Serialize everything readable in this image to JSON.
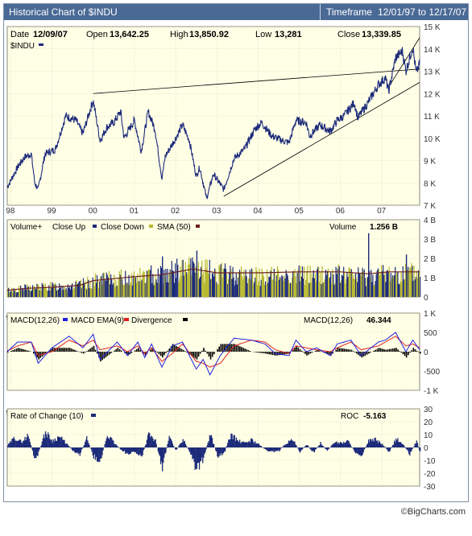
{
  "header": {
    "title": "Historical Chart of $INDU",
    "timeframe_label": "Timeframe",
    "timeframe_value": "12/01/97 to 12/17/07"
  },
  "quote": {
    "date_label": "Date",
    "date": "12/09/07",
    "open_label": "Open",
    "open": "13,642.25",
    "high_label": "High",
    "high": "13,850.92",
    "low_label": "Low",
    "low": "13,281",
    "close_label": "Close",
    "close": "13,339.85"
  },
  "credit": "©BigCharts.com",
  "colors": {
    "panel_bg": "#ffffe6",
    "grid": "#c9c9b0",
    "price_line": "#1c2a7a",
    "volume_up": "#1c2a7a",
    "volume_down": "#b8b830",
    "sma": "#6b1f1f",
    "macd": "#2020e0",
    "macd_ema": "#e02020",
    "divergence": "#000000",
    "roc": "#1c2a7a"
  },
  "chart_data": [
    {
      "type": "line",
      "panel": "price",
      "title": "",
      "series": [
        {
          "name": "$INDU",
          "x": [
            "1997-12",
            "1998-03",
            "1998-05",
            "1998-07",
            "1998-08",
            "1998-09",
            "1998-11",
            "1999-02",
            "1999-05",
            "1999-08",
            "1999-10",
            "2000-01",
            "2000-03",
            "2000-05",
            "2000-07",
            "2000-09",
            "2000-10",
            "2001-01",
            "2001-03",
            "2001-05",
            "2001-07",
            "2001-09",
            "2001-10",
            "2002-01",
            "2002-03",
            "2002-05",
            "2002-07",
            "2002-08",
            "2002-10",
            "2002-12",
            "2003-03",
            "2003-06",
            "2003-09",
            "2003-12",
            "2004-02",
            "2004-05",
            "2004-08",
            "2004-10",
            "2004-12",
            "2005-03",
            "2005-04",
            "2005-07",
            "2005-10",
            "2005-12",
            "2006-02",
            "2006-05",
            "2006-06",
            "2006-09",
            "2006-12",
            "2007-02",
            "2007-03",
            "2007-05",
            "2007-07",
            "2007-08",
            "2007-10",
            "2007-11",
            "2007-12"
          ],
          "values": [
            7800,
            8700,
            9150,
            9300,
            8000,
            7700,
            9300,
            9500,
            11000,
            10800,
            10200,
            11700,
            9900,
            10500,
            10700,
            11200,
            10000,
            10800,
            9400,
            11200,
            10400,
            8200,
            9200,
            10000,
            10600,
            9900,
            8300,
            8700,
            7300,
            8400,
            7700,
            9100,
            9500,
            10400,
            10700,
            10100,
            9900,
            9800,
            10800,
            10700,
            10100,
            10600,
            10300,
            10800,
            11000,
            11600,
            10900,
            11600,
            12400,
            12700,
            12100,
            13600,
            13900,
            13000,
            14100,
            12900,
            13340
          ]
        }
      ],
      "trendlines": [
        {
          "from": [
            "2000-01",
            12000
          ],
          "to": [
            "2007-12",
            13100
          ]
        },
        {
          "from": [
            "2003-03",
            7400
          ],
          "to": [
            "2007-12",
            12500
          ]
        },
        {
          "from": [
            "2007-03",
            12300
          ],
          "to": [
            "2007-12",
            14500
          ]
        }
      ],
      "ylim": [
        7000,
        15000
      ],
      "yticks": [
        7000,
        8000,
        9000,
        10000,
        11000,
        12000,
        13000,
        14000,
        15000
      ],
      "ytick_labels": [
        "7 K",
        "8 K",
        "9 K",
        "10 K",
        "11 K",
        "12 K",
        "13 K",
        "14 K",
        "15 K"
      ],
      "xlim": [
        "1997-12",
        "2007-12"
      ],
      "xticks": [
        "1998-01",
        "1999-01",
        "2000-01",
        "2001-01",
        "2002-01",
        "2003-01",
        "2004-01",
        "2005-01",
        "2006-01",
        "2007-01"
      ],
      "xtick_labels": [
        "98",
        "99",
        "00",
        "01",
        "02",
        "03",
        "04",
        "05",
        "06",
        "07"
      ],
      "grid": true,
      "legend": "top-left"
    },
    {
      "type": "bar",
      "panel": "volume",
      "title": "Volume+",
      "legend_items": [
        "Close Up",
        "Close Down",
        "SMA (50)"
      ],
      "value_label": "Volume",
      "value_text": "1.256 B",
      "ylim": [
        0,
        4
      ],
      "yticks": [
        0,
        1,
        2,
        3,
        4
      ],
      "ytick_labels": [
        "0",
        "1 B",
        "2 B",
        "3 B",
        "4 B"
      ],
      "unit": "billion shares",
      "series": [
        {
          "name": "SMA (50)",
          "x": [
            "1997-12",
            "1998-06",
            "1999-01",
            "1999-09",
            "2000-01",
            "2000-07",
            "2001-01",
            "2001-09",
            "2002-06",
            "2003-01",
            "2004-01",
            "2005-01",
            "2006-01",
            "2006-09",
            "2007-03",
            "2007-12"
          ],
          "values": [
            0.35,
            0.45,
            0.5,
            0.6,
            0.85,
            0.95,
            1.05,
            1.15,
            1.45,
            1.25,
            1.25,
            1.3,
            1.3,
            1.2,
            1.3,
            1.3
          ]
        },
        {
          "name": "Volume envelope",
          "x": [
            "1997-12",
            "1998-06",
            "1999-01",
            "1999-09",
            "2000-01",
            "2000-07",
            "2001-01",
            "2001-09",
            "2002-06",
            "2003-01",
            "2004-01",
            "2005-01",
            "2006-01",
            "2006-09",
            "2007-03",
            "2007-12"
          ],
          "values": [
            0.5,
            0.7,
            0.8,
            0.9,
            1.2,
            1.4,
            1.5,
            1.8,
            2.2,
            1.8,
            1.6,
            1.7,
            1.7,
            1.6,
            1.8,
            1.8
          ]
        }
      ],
      "spikes": [
        {
          "x": "2001-09",
          "value": 2.1
        },
        {
          "x": "2002-07",
          "value": 2.4
        },
        {
          "x": "2006-09",
          "value": 3.3
        },
        {
          "x": "2007-08",
          "value": 2.2
        }
      ],
      "xtick_labels": [
        "98",
        "99",
        "00",
        "01",
        "02",
        "03",
        "04",
        "05",
        "06",
        "07"
      ],
      "grid": true
    },
    {
      "type": "line",
      "panel": "macd",
      "title": "MACD(12,26)",
      "legend_items": [
        "MACD EMA(9)",
        "Divergence"
      ],
      "value_label": "MACD(12,26)",
      "value_text": "46.344",
      "ylim": [
        -1000,
        1000
      ],
      "yticks": [
        -1000,
        -500,
        0,
        500,
        1000
      ],
      "ytick_labels": [
        "-1 K",
        "-500",
        "0",
        "500",
        "1 K"
      ],
      "series": [
        {
          "name": "MACD(12,26)",
          "x": [
            "1997-12",
            "1998-03",
            "1998-07",
            "1998-09",
            "1999-01",
            "1999-06",
            "1999-10",
            "2000-01",
            "2000-03",
            "2000-08",
            "2000-11",
            "2001-02",
            "2001-04",
            "2001-06",
            "2001-09",
            "2001-12",
            "2002-03",
            "2002-07",
            "2002-09",
            "2002-11",
            "2003-02",
            "2003-06",
            "2003-11",
            "2004-03",
            "2004-06",
            "2004-10",
            "2004-12",
            "2005-03",
            "2005-06",
            "2005-10",
            "2005-12",
            "2006-04",
            "2006-07",
            "2006-12",
            "2007-02",
            "2007-05",
            "2007-08",
            "2007-10",
            "2007-12"
          ],
          "values": [
            0,
            250,
            250,
            -300,
            100,
            400,
            100,
            450,
            -200,
            250,
            -100,
            250,
            -150,
            200,
            -400,
            150,
            250,
            -450,
            -200,
            -600,
            -100,
            350,
            300,
            200,
            -50,
            -100,
            300,
            0,
            100,
            -100,
            200,
            300,
            -100,
            250,
            300,
            500,
            0,
            300,
            50
          ]
        },
        {
          "name": "MACD EMA(9)",
          "x": [
            "1997-12",
            "1998-03",
            "1998-07",
            "1998-09",
            "1999-01",
            "1999-06",
            "1999-10",
            "2000-01",
            "2000-03",
            "2000-08",
            "2000-11",
            "2001-02",
            "2001-04",
            "2001-06",
            "2001-09",
            "2001-12",
            "2002-03",
            "2002-07",
            "2002-09",
            "2002-11",
            "2003-02",
            "2003-06",
            "2003-11",
            "2004-03",
            "2004-06",
            "2004-10",
            "2004-12",
            "2005-03",
            "2005-06",
            "2005-10",
            "2005-12",
            "2006-04",
            "2006-07",
            "2006-12",
            "2007-02",
            "2007-05",
            "2007-08",
            "2007-10",
            "2007-12"
          ],
          "values": [
            20,
            150,
            250,
            -100,
            0,
            300,
            150,
            300,
            50,
            150,
            0,
            150,
            -50,
            100,
            -250,
            -50,
            200,
            -250,
            -300,
            -400,
            -300,
            150,
            300,
            250,
            50,
            -50,
            150,
            100,
            50,
            0,
            100,
            250,
            50,
            150,
            250,
            400,
            150,
            200,
            100
          ]
        }
      ],
      "xtick_labels": [
        "98",
        "99",
        "00",
        "01",
        "02",
        "03",
        "04",
        "05",
        "06",
        "07"
      ],
      "grid": true
    },
    {
      "type": "bar",
      "panel": "roc",
      "title": "Rate of Change (10)",
      "value_label": "ROC",
      "value_text": "-5.163",
      "ylim": [
        -30,
        30
      ],
      "yticks": [
        -30,
        -20,
        -10,
        0,
        10,
        20,
        30
      ],
      "ytick_labels": [
        "-30",
        "-20",
        "-10",
        "0",
        "10",
        "20",
        "30"
      ],
      "series": [
        {
          "name": "Rate of Change (10)",
          "x": [
            "1997-12",
            "1998-02",
            "1998-04",
            "1998-06",
            "1998-08",
            "1998-09",
            "1998-11",
            "1999-01",
            "1999-03",
            "1999-05",
            "1999-07",
            "1999-09",
            "1999-11",
            "2000-01",
            "2000-03",
            "2000-05",
            "2000-07",
            "2000-09",
            "2000-11",
            "2001-01",
            "2001-03",
            "2001-05",
            "2001-07",
            "2001-09",
            "2001-11",
            "2002-01",
            "2002-03",
            "2002-05",
            "2002-07",
            "2002-09",
            "2002-11",
            "2003-01",
            "2003-03",
            "2003-05",
            "2003-07",
            "2003-09",
            "2003-11",
            "2004-01",
            "2004-03",
            "2004-05",
            "2004-07",
            "2004-09",
            "2004-11",
            "2005-01",
            "2005-03",
            "2005-05",
            "2005-07",
            "2005-09",
            "2005-11",
            "2006-01",
            "2006-03",
            "2006-05",
            "2006-07",
            "2006-09",
            "2006-11",
            "2007-01",
            "2007-03",
            "2007-05",
            "2007-07",
            "2007-09",
            "2007-11",
            "2007-12"
          ],
          "values": [
            2,
            9,
            5,
            11,
            -13,
            -4,
            14,
            6,
            10,
            4,
            -3,
            -6,
            8,
            -8,
            -12,
            12,
            4,
            -2,
            -6,
            -4,
            -9,
            12,
            6,
            -18,
            10,
            -3,
            8,
            -5,
            -20,
            -10,
            13,
            -8,
            -5,
            12,
            6,
            4,
            7,
            3,
            -2,
            -4,
            -3,
            4,
            7,
            -4,
            3,
            -5,
            4,
            -3,
            5,
            4,
            6,
            -4,
            -7,
            6,
            7,
            3,
            -4,
            8,
            3,
            -6,
            6,
            -5
          ]
        }
      ],
      "xtick_labels": [
        "98",
        "99",
        "00",
        "01",
        "02",
        "03",
        "04",
        "05",
        "06",
        "07"
      ],
      "grid": true
    }
  ]
}
